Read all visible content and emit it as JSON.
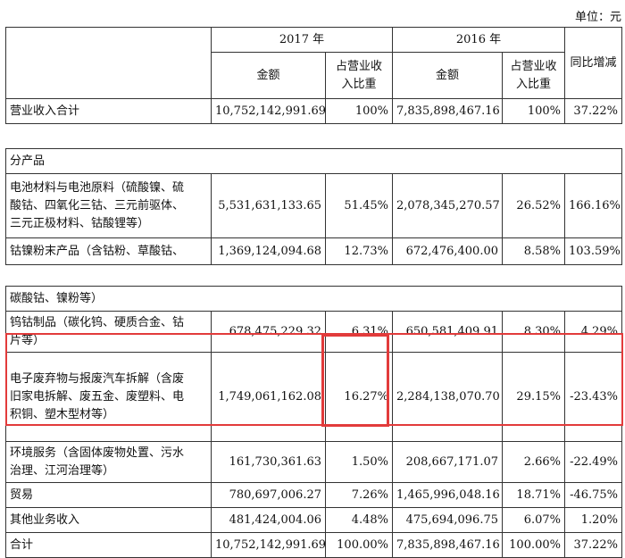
{
  "unit_label": "单位：元",
  "header": {
    "year_2017": "2017 年",
    "year_2016": "2016 年",
    "amount": "金额",
    "ratio_line1": "占营业收",
    "ratio_line2": "入比重",
    "yoy": "同比增减"
  },
  "total_top": {
    "label": "营业收入合计",
    "amt_2017": "10,752,142,991.69",
    "ratio_2017": "100%",
    "amt_2016": "7,835,898,467.16",
    "ratio_2016": "100%",
    "yoy": "37.22%"
  },
  "section_label": "分产品",
  "rows": [
    {
      "label_lines": [
        "电池材料与电池原料（硫酸镍、硫",
        "酸钴、四氧化三钴、三元前驱体、",
        "三元正极材料、钴酸锂等）"
      ],
      "amt_2017": "5,531,631,133.65",
      "ratio_2017": "51.45%",
      "amt_2016": "2,078,345,270.57",
      "ratio_2016": "26.52%",
      "yoy": "166.16%"
    },
    {
      "label_lines": [
        "钴镍粉末产品（含钴粉、草酸钴、"
      ],
      "amt_2017": "1,369,124,094.68",
      "ratio_2017": "12.73%",
      "amt_2016": "672,476,400.00",
      "ratio_2016": "8.58%",
      "yoy": "103.59%"
    }
  ],
  "continuation": "碳酸钴、镍粉等）",
  "rows2": [
    {
      "label_lines": [
        "钨钴制品（碳化钨、硬质合金、钴",
        "片等）"
      ],
      "amt_2017": "678,475,229.32",
      "ratio_2017": "6.31%",
      "amt_2016": "650,581,409.91",
      "ratio_2016": "8.30%",
      "yoy": "4.29%"
    },
    {
      "label_lines": [
        "电子废弃物与报废汽车拆解（含废",
        "旧家电拆解、废五金、废塑料、电",
        "积铜、塑木型材等）"
      ],
      "amt_2017": "1,749,061,162.08",
      "ratio_2017": "16.27%",
      "amt_2016": "2,284,138,070.70",
      "ratio_2016": "29.15%",
      "yoy": "-23.43%"
    },
    {
      "label_lines": [
        "环境服务（含固体废物处置、污水",
        "治理、江河治理等）"
      ],
      "amt_2017": "161,730,361.63",
      "ratio_2017": "1.50%",
      "amt_2016": "208,667,171.07",
      "ratio_2016": "2.66%",
      "yoy": "-22.49%"
    },
    {
      "label_lines": [
        "贸易"
      ],
      "amt_2017": "780,697,006.27",
      "ratio_2017": "7.26%",
      "amt_2016": "1,465,996,048.16",
      "ratio_2016": "18.71%",
      "yoy": "-46.75%"
    },
    {
      "label_lines": [
        "其他业务收入"
      ],
      "amt_2017": "481,424,004.06",
      "ratio_2017": "4.48%",
      "amt_2016": "475,694,096.75",
      "ratio_2016": "6.07%",
      "yoy": "1.20%"
    },
    {
      "label_lines": [
        "合计"
      ],
      "amt_2017": "10,752,142,991.69",
      "ratio_2017": "100.00%",
      "amt_2016": "7,835,898,467.16",
      "ratio_2016": "100.00%",
      "yoy": "37.22%"
    }
  ],
  "highlight_color": "#e23b3b"
}
